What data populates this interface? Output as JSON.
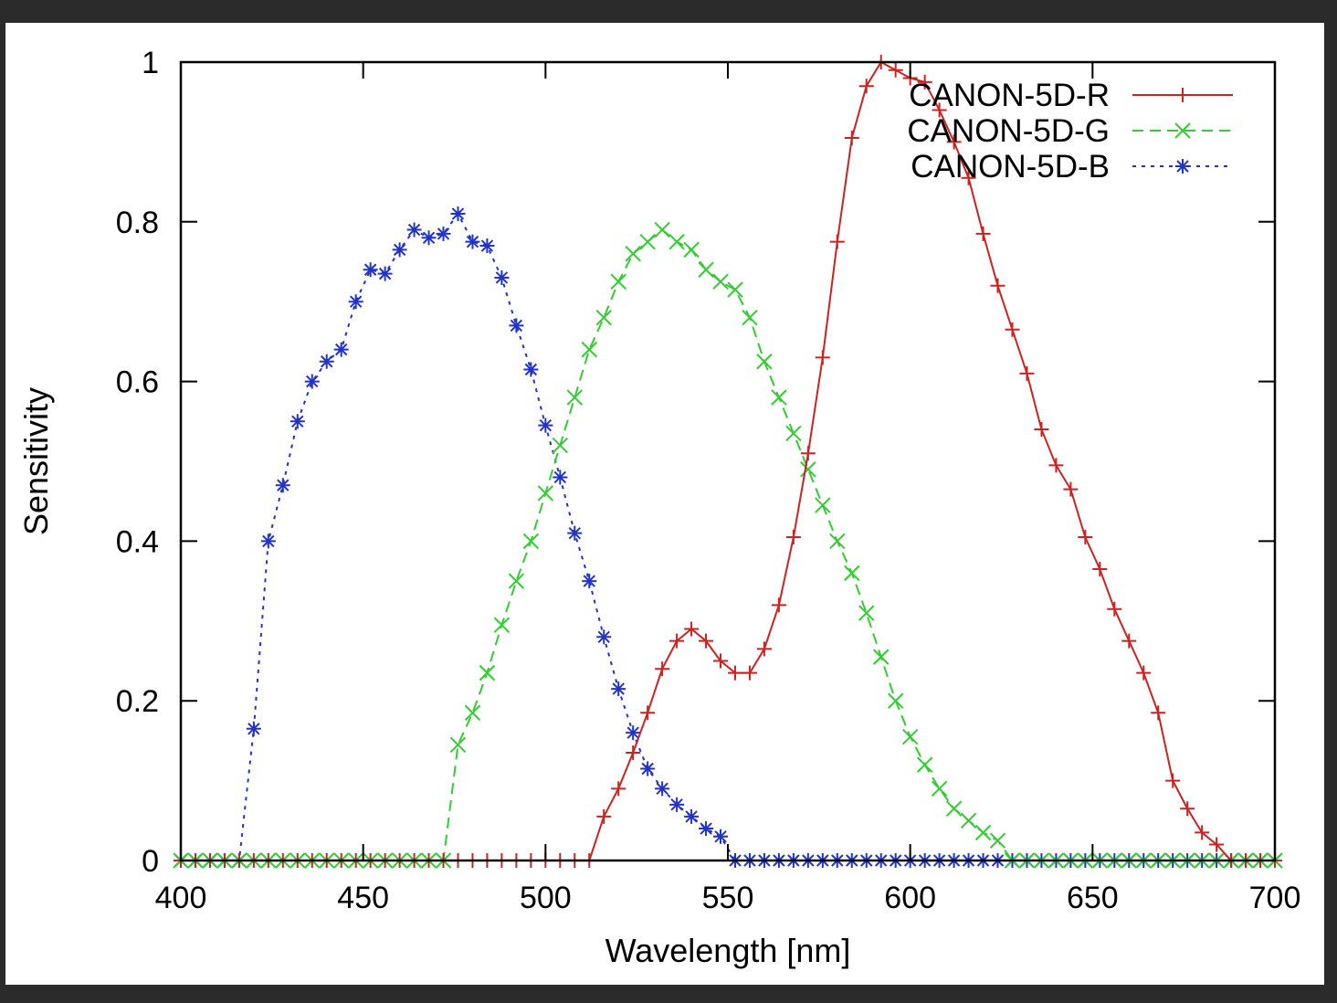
{
  "chart_data": {
    "type": "line",
    "title": "",
    "xlabel": "Wavelength [nm]",
    "ylabel": "Sensitivity",
    "xlim": [
      400,
      700
    ],
    "ylim": [
      0,
      1
    ],
    "xticks": [
      400,
      450,
      500,
      550,
      600,
      650,
      700
    ],
    "yticks": [
      0,
      0.2,
      0.4,
      0.6,
      0.8,
      1
    ],
    "ytick_labels": [
      "0",
      "0.2",
      "0.4",
      "0.6",
      "0.8",
      "1"
    ],
    "grid": false,
    "legend_position": "top-right",
    "x": [
      400,
      404,
      408,
      412,
      416,
      420,
      424,
      428,
      432,
      436,
      440,
      444,
      448,
      452,
      456,
      460,
      464,
      468,
      472,
      476,
      480,
      484,
      488,
      492,
      496,
      500,
      504,
      508,
      512,
      516,
      520,
      524,
      528,
      532,
      536,
      540,
      544,
      548,
      552,
      556,
      560,
      564,
      568,
      572,
      576,
      580,
      584,
      588,
      592,
      596,
      600,
      604,
      608,
      612,
      616,
      620,
      624,
      628,
      632,
      636,
      640,
      644,
      648,
      652,
      656,
      660,
      664,
      668,
      672,
      676,
      680,
      684,
      688,
      692,
      696,
      700
    ],
    "series": [
      {
        "name": "CANON-5D-R",
        "color": "#cc2222",
        "line_style": "solid",
        "marker": "plus",
        "values": [
          0,
          0,
          0,
          0,
          0,
          0,
          0,
          0,
          0,
          0,
          0,
          0,
          0,
          0,
          0,
          0,
          0,
          0,
          0,
          0,
          0,
          0,
          0,
          0,
          0,
          0,
          0,
          0,
          0,
          0.055,
          0.09,
          0.135,
          0.185,
          0.24,
          0.275,
          0.29,
          0.275,
          0.25,
          0.235,
          0.235,
          0.265,
          0.32,
          0.405,
          0.51,
          0.63,
          0.775,
          0.905,
          0.97,
          1.0,
          0.99,
          0.98,
          0.975,
          0.94,
          0.9,
          0.855,
          0.785,
          0.72,
          0.665,
          0.61,
          0.54,
          0.495,
          0.465,
          0.405,
          0.365,
          0.315,
          0.275,
          0.235,
          0.185,
          0.1,
          0.065,
          0.035,
          0.02,
          0,
          0,
          0,
          0
        ]
      },
      {
        "name": "CANON-5D-G",
        "color": "#33cc33",
        "line_style": "dashed",
        "marker": "x",
        "values": [
          0,
          0,
          0,
          0,
          0,
          0,
          0,
          0,
          0,
          0,
          0,
          0,
          0,
          0,
          0,
          0,
          0,
          0,
          0,
          0.145,
          0.185,
          0.235,
          0.295,
          0.35,
          0.4,
          0.46,
          0.52,
          0.58,
          0.64,
          0.68,
          0.725,
          0.76,
          0.775,
          0.79,
          0.775,
          0.765,
          0.74,
          0.725,
          0.715,
          0.68,
          0.625,
          0.58,
          0.535,
          0.49,
          0.445,
          0.4,
          0.36,
          0.31,
          0.255,
          0.2,
          0.155,
          0.12,
          0.09,
          0.065,
          0.05,
          0.035,
          0.025,
          0,
          0,
          0,
          0,
          0,
          0,
          0,
          0,
          0,
          0,
          0,
          0,
          0,
          0,
          0,
          0,
          0,
          0,
          0
        ]
      },
      {
        "name": "CANON-5D-B",
        "color": "#2233cc",
        "line_style": "dotted",
        "marker": "star",
        "values": [
          0,
          0,
          0,
          0,
          0,
          0.165,
          0.4,
          0.47,
          0.55,
          0.6,
          0.625,
          0.64,
          0.7,
          0.74,
          0.735,
          0.765,
          0.79,
          0.78,
          0.785,
          0.81,
          0.775,
          0.77,
          0.73,
          0.67,
          0.615,
          0.545,
          0.48,
          0.41,
          0.35,
          0.28,
          0.215,
          0.16,
          0.115,
          0.09,
          0.07,
          0.055,
          0.04,
          0.03,
          0,
          0,
          0,
          0,
          0,
          0,
          0,
          0,
          0,
          0,
          0,
          0,
          0,
          0,
          0,
          0,
          0,
          0,
          0,
          0,
          0,
          0,
          0,
          0,
          0,
          0,
          0,
          0,
          0,
          0,
          0,
          0,
          0,
          0,
          0,
          0,
          0,
          0
        ]
      }
    ]
  }
}
